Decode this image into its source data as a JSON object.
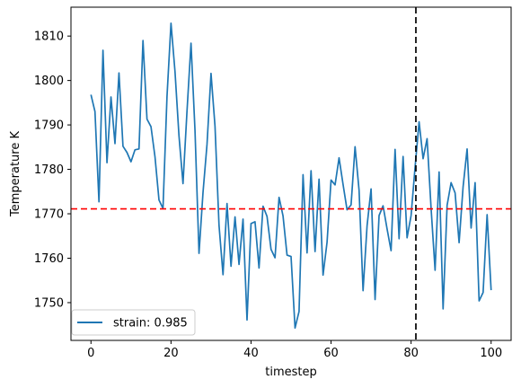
{
  "chart_data": {
    "type": "line",
    "xlabel": "timestep",
    "ylabel": "Temperature K",
    "xlim": [
      -5,
      105
    ],
    "ylim": [
      1741.5,
      1816.5
    ],
    "xticks": [
      0,
      20,
      40,
      60,
      80,
      100
    ],
    "yticks": [
      1750,
      1760,
      1770,
      1780,
      1790,
      1800,
      1810
    ],
    "grid": false,
    "legend_position": "lower-left",
    "series": [
      {
        "name": "strain: 0.985",
        "color": "#1f77b4",
        "x": [
          0,
          1,
          2,
          3,
          4,
          5,
          6,
          7,
          8,
          9,
          10,
          11,
          12,
          13,
          14,
          15,
          16,
          17,
          18,
          19,
          20,
          21,
          22,
          23,
          24,
          25,
          26,
          27,
          28,
          29,
          30,
          31,
          32,
          33,
          34,
          35,
          36,
          37,
          38,
          39,
          40,
          41,
          42,
          43,
          44,
          45,
          46,
          47,
          48,
          49,
          50,
          51,
          52,
          53,
          54,
          55,
          56,
          57,
          58,
          59,
          60,
          61,
          62,
          63,
          64,
          65,
          66,
          67,
          68,
          69,
          70,
          71,
          72,
          73,
          74,
          75,
          76,
          77,
          78,
          79,
          80,
          81,
          82,
          83,
          84,
          85,
          86,
          87,
          88,
          89,
          90,
          91,
          92,
          93,
          94,
          95,
          96,
          97,
          98,
          99,
          100
        ],
        "values": [
          1796.8,
          1793.0,
          1772.7,
          1806.8,
          1781.5,
          1796.3,
          1785.8,
          1801.7,
          1785.2,
          1783.8,
          1781.7,
          1784.4,
          1784.6,
          1809.0,
          1791.3,
          1789.6,
          1782.8,
          1773.1,
          1771.2,
          1796.4,
          1812.9,
          1802.0,
          1787.5,
          1776.8,
          1793.1,
          1808.4,
          1788.7,
          1761.1,
          1774.8,
          1785.6,
          1801.6,
          1789.7,
          1767.4,
          1756.3,
          1772.3,
          1758.2,
          1769.3,
          1758.6,
          1768.8,
          1746.1,
          1767.8,
          1768.2,
          1757.8,
          1771.7,
          1769.4,
          1762.0,
          1760.1,
          1773.7,
          1769.5,
          1760.7,
          1760.4,
          1744.3,
          1748.0,
          1778.8,
          1761.2,
          1779.7,
          1761.5,
          1777.8,
          1756.2,
          1763.6,
          1777.6,
          1776.5,
          1782.6,
          1776.6,
          1770.9,
          1772.0,
          1785.1,
          1775.3,
          1752.7,
          1767.3,
          1775.6,
          1750.7,
          1769.6,
          1771.8,
          1766.6,
          1761.7,
          1784.5,
          1764.4,
          1782.9,
          1764.6,
          1769.6,
          1780.5,
          1790.7,
          1782.4,
          1786.9,
          1771.2,
          1757.3,
          1779.4,
          1748.6,
          1771.9,
          1777.0,
          1774.7,
          1763.5,
          1776.1,
          1784.6,
          1766.8,
          1777.0,
          1750.4,
          1752.3,
          1769.8,
          1752.8
        ]
      }
    ],
    "reference_lines": [
      {
        "orientation": "horizontal",
        "value": 1771.1,
        "color": "#ff0000",
        "style": "dashed"
      },
      {
        "orientation": "vertical",
        "value": 81.2,
        "color": "#000000",
        "style": "dashed"
      }
    ]
  }
}
